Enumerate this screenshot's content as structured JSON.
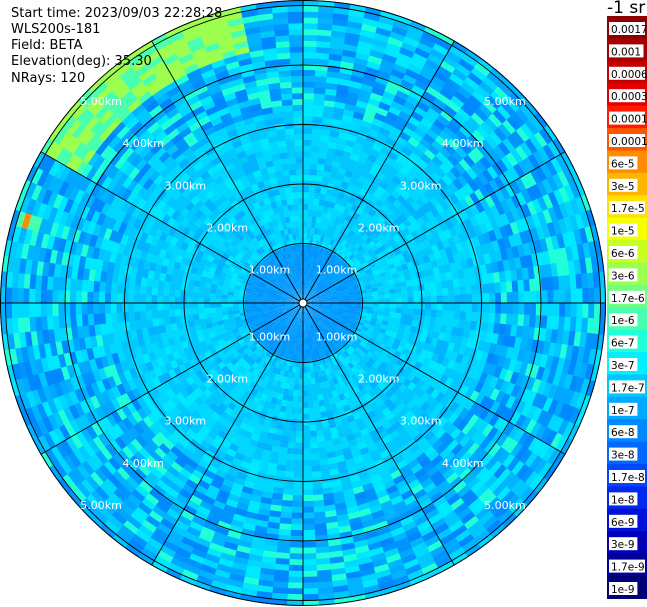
{
  "header": {
    "start_time": "Start time: 2023/09/03 22:28:28",
    "device": "WLS200s-181",
    "field": "Field: BETA",
    "elevation": "Elevation(deg): 35.30",
    "nrays": "NRays: 120"
  },
  "colorbar": {
    "unit_label": "-1 sr",
    "ticks": [
      {
        "label": "0.0017",
        "color": "#8b0000"
      },
      {
        "label": "0.001",
        "color": "#a50000"
      },
      {
        "label": "0.0006",
        "color": "#c40000"
      },
      {
        "label": "0.0003",
        "color": "#e40000"
      },
      {
        "label": "0.00017",
        "color": "#ff1a00"
      },
      {
        "label": "0.0001",
        "color": "#ff5500"
      },
      {
        "label": "6e-5",
        "color": "#ff8c00"
      },
      {
        "label": "3e-5",
        "color": "#ffb400"
      },
      {
        "label": "1.7e-5",
        "color": "#ffe000"
      },
      {
        "label": "1e-5",
        "color": "#f4ff00"
      },
      {
        "label": "6e-6",
        "color": "#c8ff20"
      },
      {
        "label": "3e-6",
        "color": "#9cff50"
      },
      {
        "label": "1.7e-6",
        "color": "#70ff80"
      },
      {
        "label": "1e-6",
        "color": "#48ffb0"
      },
      {
        "label": "6e-7",
        "color": "#20ffd8"
      },
      {
        "label": "3e-7",
        "color": "#00f0ff"
      },
      {
        "label": "1.7e-7",
        "color": "#00c8ff"
      },
      {
        "label": "1e-7",
        "color": "#00a8ff"
      },
      {
        "label": "6e-8",
        "color": "#0088ff"
      },
      {
        "label": "3e-8",
        "color": "#0068ff"
      },
      {
        "label": "1.7e-8",
        "color": "#0048ff"
      },
      {
        "label": "1e-8",
        "color": "#0028f0"
      },
      {
        "label": "6e-9",
        "color": "#0010d8"
      },
      {
        "label": "3e-9",
        "color": "#0000b8"
      },
      {
        "label": "1.7e-9",
        "color": "#000098"
      },
      {
        "label": "1e-9",
        "color": "#000078"
      }
    ]
  },
  "chart_data": {
    "type": "heatmap",
    "projection": "polar",
    "rays": 120,
    "max_range_km": 6.0,
    "ring_labels": [
      "1.00km",
      "2.00km",
      "3.00km",
      "4.00km",
      "5.00km"
    ],
    "ring_ranges_km": [
      1,
      2,
      3,
      4,
      5
    ],
    "spoke_angles_deg": [
      0,
      30,
      60,
      90,
      120,
      150,
      180,
      210,
      240,
      270,
      300,
      330
    ],
    "background_level": "1e-7",
    "features": [
      {
        "description_value": "3e-6",
        "range_km": [
          4.3,
          6.0
        ],
        "azimuth_deg": [
          300,
          345
        ]
      },
      {
        "description_value": "6e-5",
        "range_km": [
          4.6,
          5.0
        ],
        "azimuth_deg": [
          283,
          287
        ]
      }
    ]
  }
}
